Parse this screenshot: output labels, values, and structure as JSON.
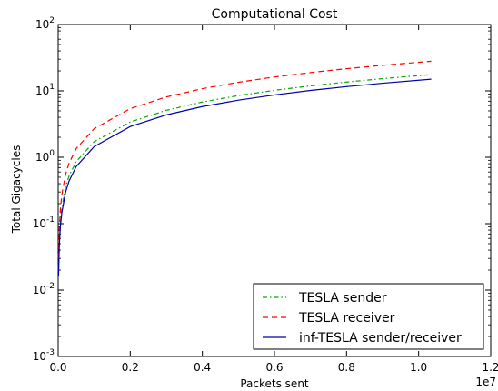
{
  "chart_data": {
    "type": "line",
    "title": "Computational Cost",
    "xlabel": "Packets sent",
    "ylabel": "Total Gigacycles",
    "x_scale": "linear",
    "y_scale": "log",
    "xlim": [
      0,
      12000000
    ],
    "ylim": [
      0.001,
      100
    ],
    "x_offset_label": "1e7",
    "x_ticks": [
      0,
      2000000,
      4000000,
      6000000,
      8000000,
      10000000,
      12000000
    ],
    "x_tick_labels": [
      "0.0",
      "0.2",
      "0.4",
      "0.6",
      "0.8",
      "1.0",
      "1.2"
    ],
    "y_ticks": [
      {
        "value": 0.001,
        "base": "10",
        "exp": "-3"
      },
      {
        "value": 0.01,
        "base": "10",
        "exp": "-2"
      },
      {
        "value": 0.1,
        "base": "10",
        "exp": "-1"
      },
      {
        "value": 1,
        "base": "10",
        "exp": "0"
      },
      {
        "value": 10,
        "base": "10",
        "exp": "1"
      },
      {
        "value": 100,
        "base": "10",
        "exp": "2"
      }
    ],
    "grid": false,
    "legend_position": "lower-right",
    "series": [
      {
        "name": "TESLA sender",
        "color": "#00aa00",
        "dash": "dashdot",
        "x": [
          10000,
          30000,
          60000,
          100000,
          200000,
          300000,
          500000,
          1000000,
          2000000,
          3000000,
          4000000,
          5000000,
          6000000,
          7000000,
          8000000,
          9000000,
          10350000
        ],
        "y": [
          0.02,
          0.05,
          0.1,
          0.17,
          0.35,
          0.52,
          0.86,
          1.72,
          3.4,
          5.1,
          6.8,
          8.5,
          10.2,
          11.9,
          13.6,
          15.3,
          17.6
        ]
      },
      {
        "name": "TESLA receiver",
        "color": "#ff0000",
        "dash": "dashed",
        "x": [
          10000,
          30000,
          60000,
          100000,
          200000,
          300000,
          500000,
          1000000,
          2000000,
          3000000,
          4000000,
          5000000,
          6000000,
          7000000,
          8000000,
          9000000,
          10350000
        ],
        "y": [
          0.03,
          0.08,
          0.16,
          0.27,
          0.54,
          0.81,
          1.35,
          2.7,
          5.4,
          8.1,
          10.8,
          13.5,
          16.2,
          18.9,
          21.6,
          24.3,
          28.0
        ]
      },
      {
        "name": "inf-TESLA sender/receiver",
        "color": "#0000aa",
        "dash": "solid",
        "x": [
          10000,
          30000,
          60000,
          100000,
          200000,
          300000,
          500000,
          1000000,
          2000000,
          3000000,
          4000000,
          5000000,
          6000000,
          7000000,
          8000000,
          9000000,
          10350000
        ],
        "y": [
          0.016,
          0.045,
          0.09,
          0.145,
          0.29,
          0.435,
          0.725,
          1.45,
          2.9,
          4.35,
          5.8,
          7.25,
          8.7,
          10.15,
          11.6,
          13.05,
          15.0
        ]
      }
    ]
  }
}
